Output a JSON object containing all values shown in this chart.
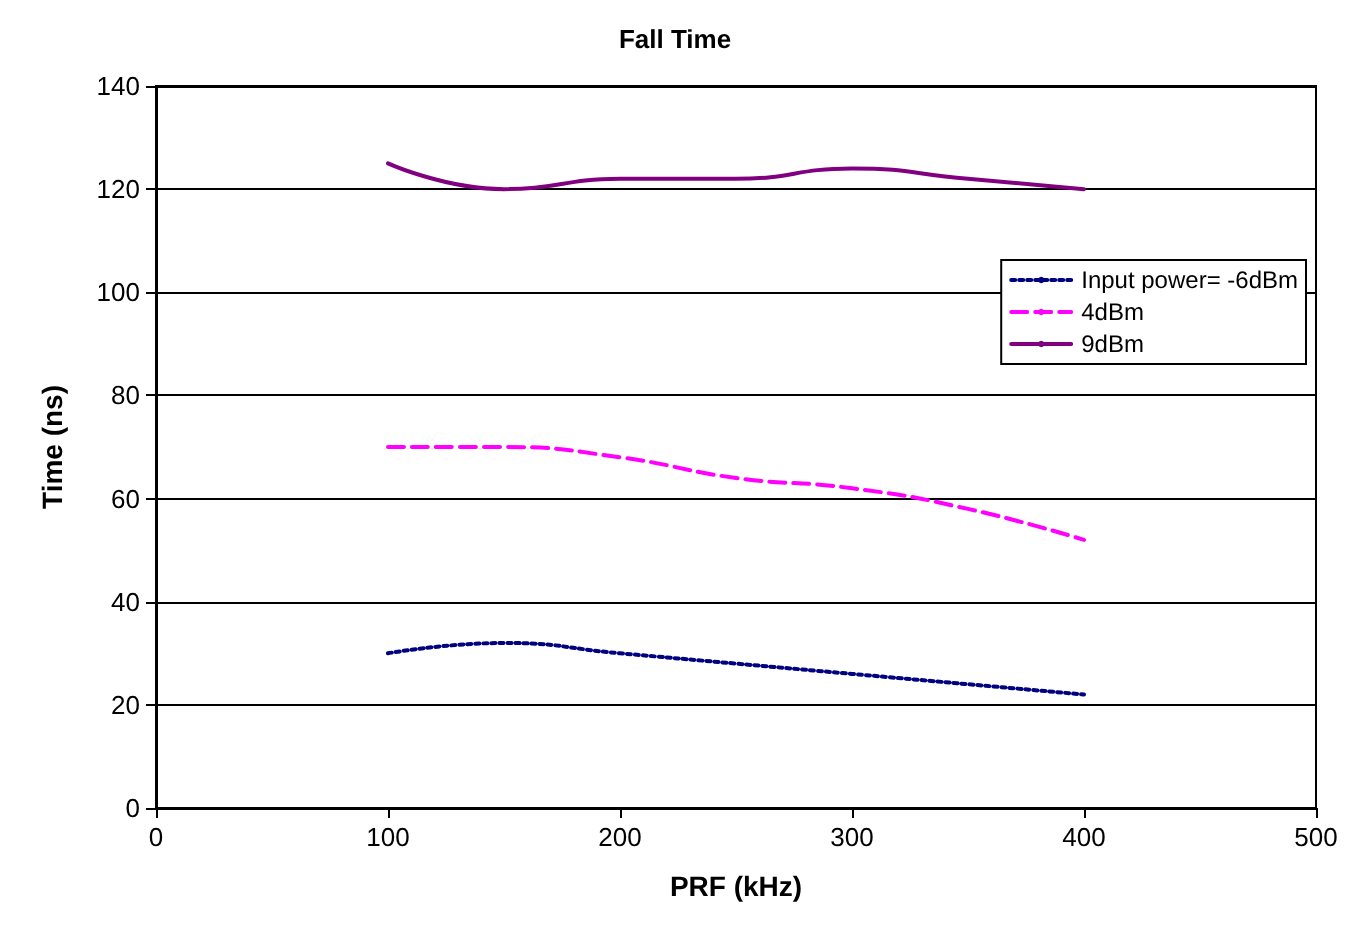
{
  "chart_data": {
    "type": "line",
    "title": "Fall Time",
    "xlabel": "PRF (kHz)",
    "ylabel": "Time (ns)",
    "x": [
      100,
      150,
      200,
      250,
      300,
      350,
      400
    ],
    "series": [
      {
        "name": "Input power= -6dBm",
        "color": "#000080",
        "line_style": "dotted",
        "values": [
          30,
          32,
          30,
          28,
          26,
          24,
          22
        ]
      },
      {
        "name": "4dBm",
        "color": "#ff00ff",
        "line_style": "dashed",
        "values": [
          70,
          70,
          68,
          64,
          62,
          58,
          52
        ]
      },
      {
        "name": "9dBm",
        "color": "#800080",
        "line_style": "solid",
        "values": [
          125,
          120,
          122,
          122,
          124,
          122,
          120
        ]
      }
    ],
    "xlim": [
      0,
      500
    ],
    "xticks": [
      0,
      100,
      200,
      300,
      400,
      500
    ],
    "ylim": [
      0,
      140
    ],
    "yticks": [
      0,
      20,
      40,
      60,
      80,
      100,
      120,
      140
    ],
    "grid": "y",
    "legend": "right",
    "marker": "none"
  }
}
